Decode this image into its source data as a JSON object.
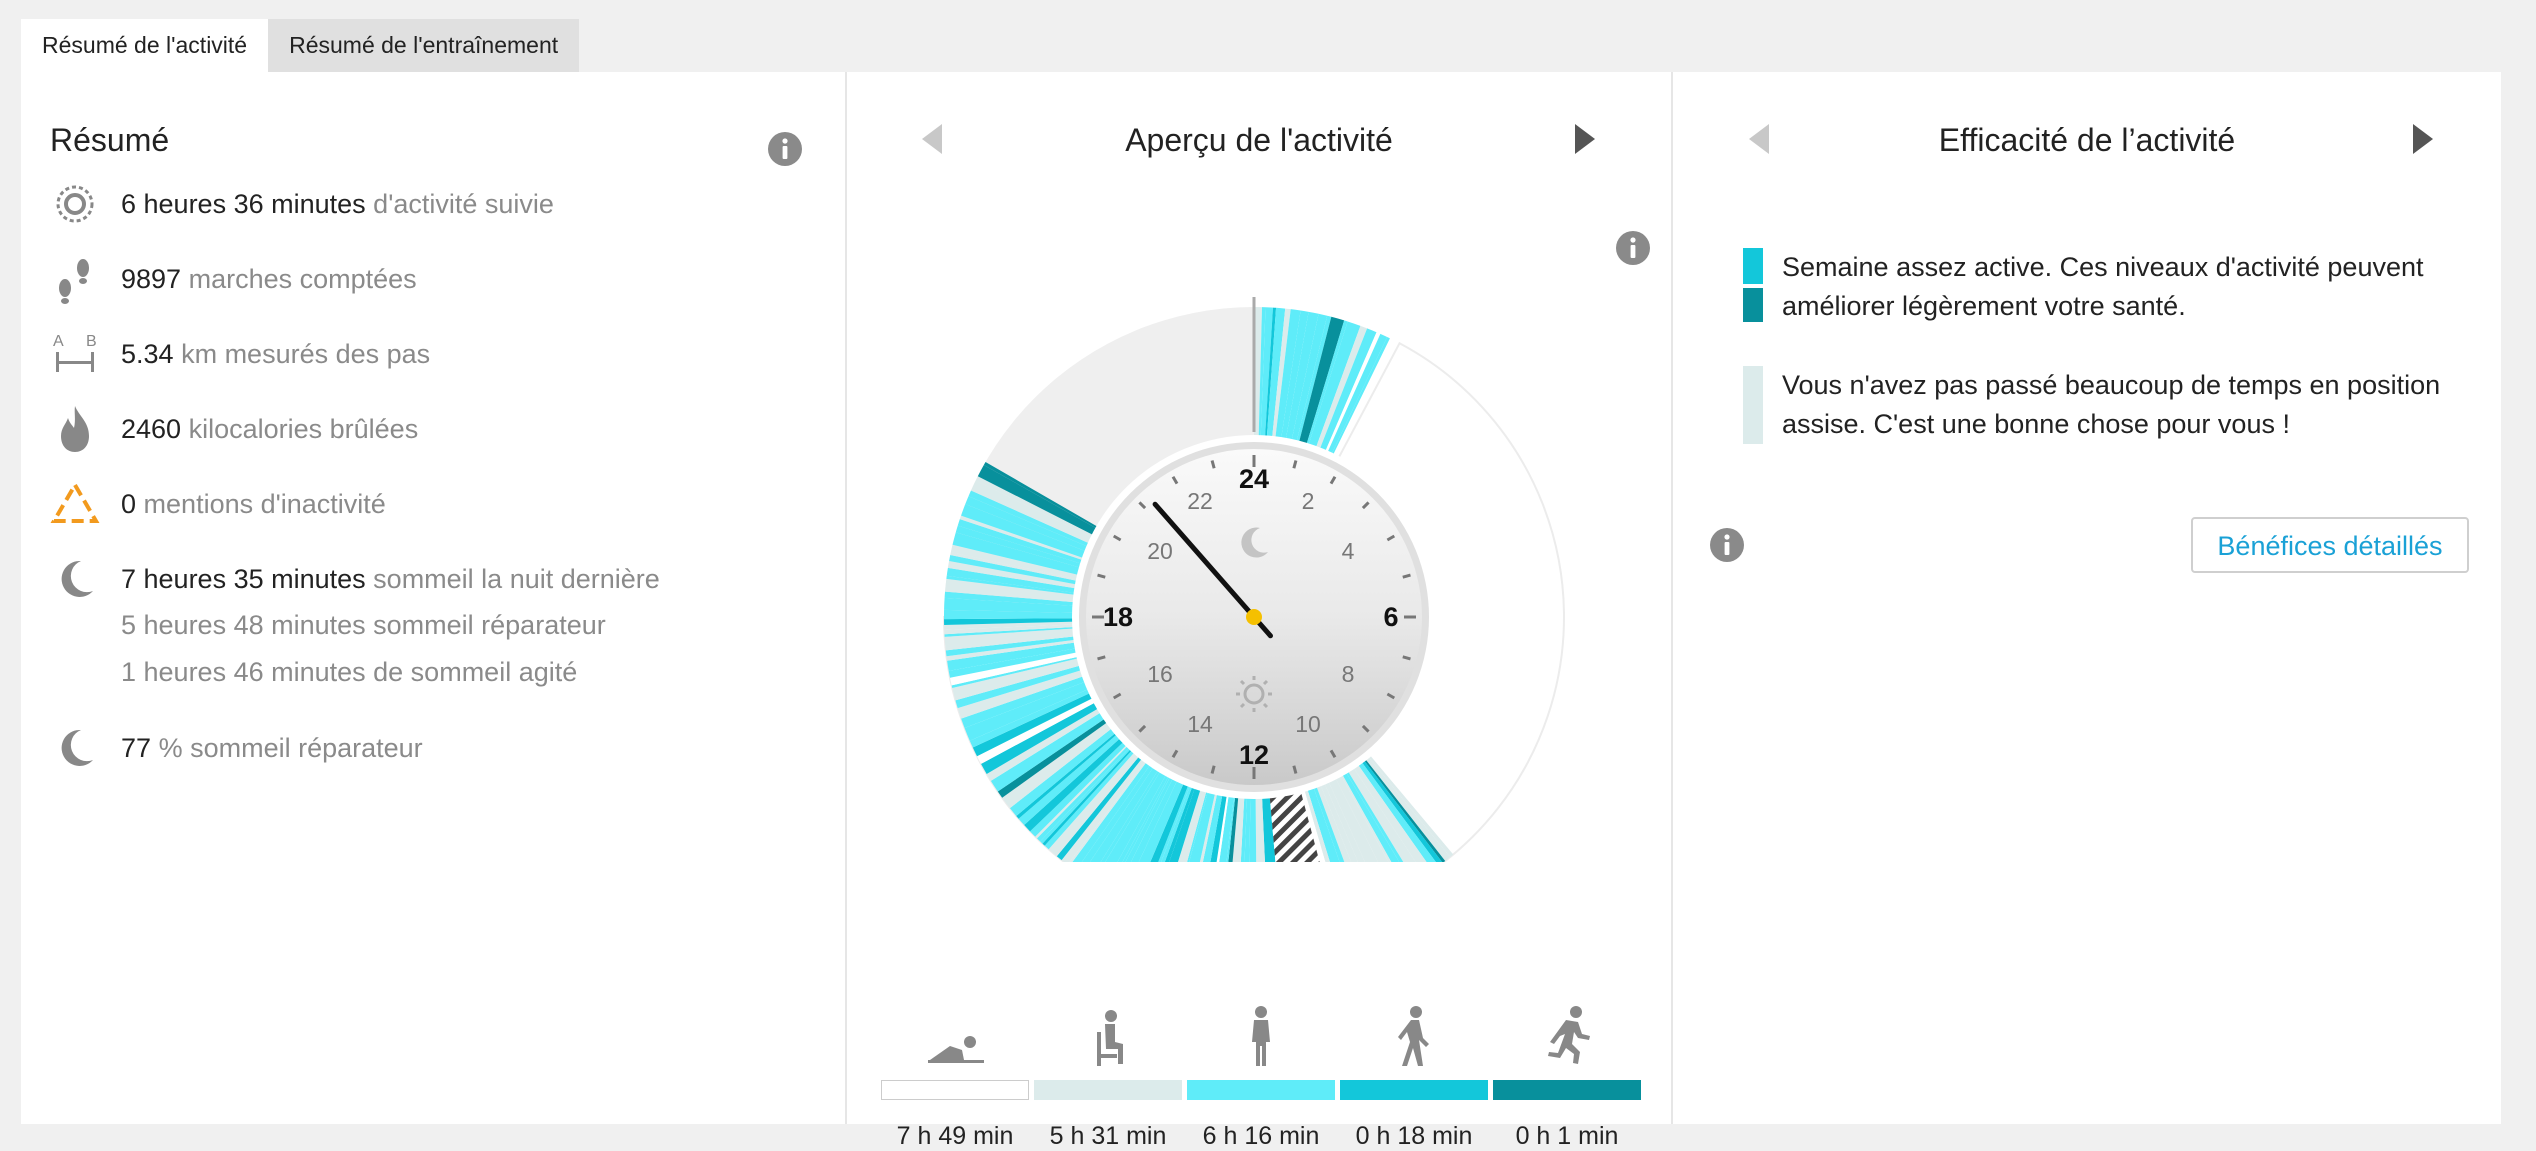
{
  "tabs": [
    {
      "label": "Résumé de l'activité",
      "active": true
    },
    {
      "label": "Résumé de l'entraînement",
      "active": false
    }
  ],
  "summary": {
    "title": "Résumé",
    "items": [
      {
        "icon": "activity-ring-icon",
        "value": "6 heures 36 minutes",
        "label": "d'activité suivie"
      },
      {
        "icon": "footprints-icon",
        "value": "9897",
        "label": "marches comptées"
      },
      {
        "icon": "distance-ab-icon",
        "value": "5.34",
        "label": "km mesurés des pas"
      },
      {
        "icon": "flame-icon",
        "value": "2460",
        "label": "kilocalories brûlées"
      },
      {
        "icon": "inactivity-alert-icon",
        "value": "0",
        "label": "mentions d'inactivité"
      },
      {
        "icon": "moon-icon",
        "value": "7 heures 35 minutes",
        "label": "sommeil la nuit dernière"
      },
      {
        "icon": "moon-icon",
        "value": "77",
        "label": "% sommeil réparateur"
      }
    ],
    "sleep_lines": [
      "5 heures 48 minutes sommeil réparateur",
      "1 heures 46 minutes de sommeil agité"
    ]
  },
  "overview": {
    "title": "Aperçu de l'activité",
    "clock": {
      "major_labels": [
        "24",
        "6",
        "12",
        "18"
      ],
      "minor_labels": [
        "2",
        "4",
        "8",
        "10",
        "14",
        "16",
        "20",
        "22"
      ],
      "current_time_hours": 21.25
    },
    "legend": [
      {
        "icon": "lying-icon",
        "color": "#ffffff",
        "value": "7 h 49 min"
      },
      {
        "icon": "sitting-icon",
        "color": "#dcebeb",
        "value": "5 h 31 min"
      },
      {
        "icon": "standing-icon",
        "color": "#5fecf9",
        "value": "6 h 16 min"
      },
      {
        "icon": "walking-icon",
        "color": "#13c7da",
        "value": "0 h 18 min"
      },
      {
        "icon": "running-icon",
        "color": "#08909c",
        "value": "0 h 1 min"
      }
    ]
  },
  "efficiency": {
    "title": "Efficacité de l’activité",
    "messages": [
      {
        "text": "Semaine assez active. Ces niveaux d'activité peuvent améliorer légèrement votre santé.",
        "colors": [
          "#13c7da",
          "#08909c"
        ]
      },
      {
        "text": "Vous n'avez pas passé beaucoup de temps en position assise. C'est une bonne chose pour vous !",
        "colors": [
          "#dcebeb"
        ]
      }
    ],
    "button_label": "Bénéfices détaillés"
  },
  "colors": {
    "accent": "#1aa1d6",
    "warning": "#f29a1e"
  }
}
